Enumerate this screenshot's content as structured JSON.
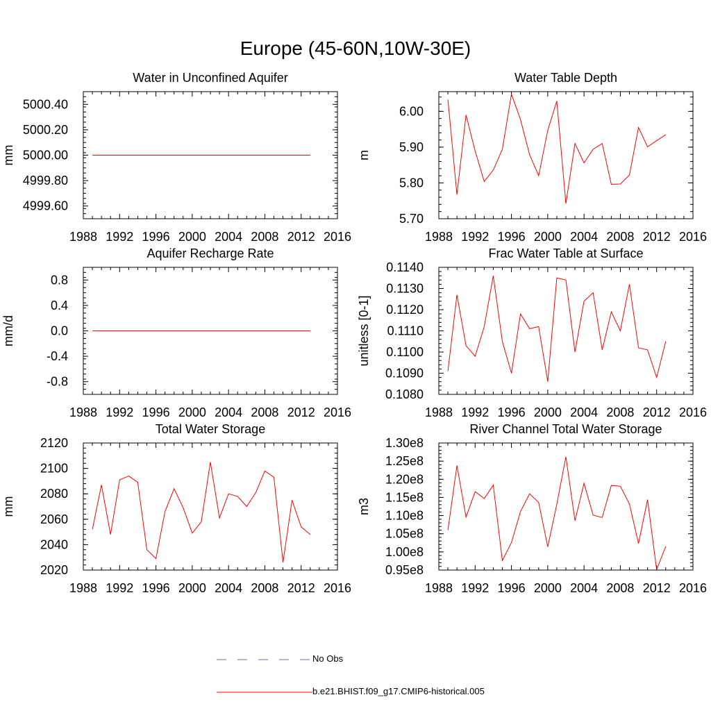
{
  "title": "Europe (45-60N,10W-30E)",
  "colors": {
    "model": "#ff0000",
    "obs": "#6b6bb3",
    "axis": "#000000"
  },
  "legend": [
    {
      "label": "No Obs",
      "style": "dashed",
      "color": "#6b6bb3"
    },
    {
      "label": "b.e21.BHIST.f09_g17.CMIP6-historical.005",
      "style": "solid",
      "color": "#ff0000"
    }
  ],
  "chart_data": [
    {
      "type": "line",
      "title": "Water in Unconfined Aquifer",
      "xlabel": "",
      "ylabel": "mm",
      "xlim": [
        1988,
        2016
      ],
      "ylim": [
        4999.5,
        5000.5
      ],
      "xticks": [
        1988,
        1992,
        1996,
        2000,
        2004,
        2008,
        2012,
        2016
      ],
      "yticks": [
        4999.6,
        4999.8,
        5000.0,
        5000.2,
        5000.4
      ],
      "ytick_labels": [
        "4999.60",
        "4999.80",
        "5000.00",
        "5000.20",
        "5000.40"
      ],
      "series": [
        {
          "name": "b.e21.BHIST.f09_g17.CMIP6-historical.005",
          "x": [
            1989,
            1990,
            1991,
            1992,
            1993,
            1994,
            1995,
            1996,
            1997,
            1998,
            1999,
            2000,
            2001,
            2002,
            2003,
            2004,
            2005,
            2006,
            2007,
            2008,
            2009,
            2010,
            2011,
            2012,
            2013
          ],
          "y": [
            5000,
            5000,
            5000,
            5000,
            5000,
            5000,
            5000,
            5000,
            5000,
            5000,
            5000,
            5000,
            5000,
            5000,
            5000,
            5000,
            5000,
            5000,
            5000,
            5000,
            5000,
            5000,
            5000,
            5000,
            5000
          ]
        }
      ]
    },
    {
      "type": "line",
      "title": "Water Table Depth",
      "xlabel": "",
      "ylabel": "m",
      "xlim": [
        1988,
        2016
      ],
      "ylim": [
        5.7,
        6.055
      ],
      "xticks": [
        1988,
        1992,
        1996,
        2000,
        2004,
        2008,
        2012,
        2016
      ],
      "yticks": [
        5.7,
        5.8,
        5.9,
        6.0
      ],
      "ytick_labels": [
        "5.70",
        "5.80",
        "5.90",
        "6.00"
      ],
      "series": [
        {
          "name": "b.e21.BHIST.f09_g17.CMIP6-historical.005",
          "x": [
            1989,
            1990,
            1991,
            1992,
            1993,
            1994,
            1995,
            1996,
            1997,
            1998,
            1999,
            2000,
            2001,
            2002,
            2003,
            2004,
            2005,
            2006,
            2007,
            2008,
            2009,
            2010,
            2011,
            2012,
            2013
          ],
          "y": [
            6.033,
            5.767,
            5.99,
            5.889,
            5.804,
            5.836,
            5.894,
            6.048,
            5.977,
            5.879,
            5.82,
            5.947,
            6.029,
            5.742,
            5.91,
            5.856,
            5.894,
            5.91,
            5.796,
            5.797,
            5.822,
            5.955,
            5.901,
            5.918,
            5.935
          ]
        }
      ]
    },
    {
      "type": "line",
      "title": "Aquifer Recharge Rate",
      "xlabel": "",
      "ylabel": "mm/d",
      "xlim": [
        1988,
        2016
      ],
      "ylim": [
        -1,
        1
      ],
      "xticks": [
        1988,
        1992,
        1996,
        2000,
        2004,
        2008,
        2012,
        2016
      ],
      "yticks": [
        -0.8,
        -0.4,
        0.0,
        0.4,
        0.8
      ],
      "ytick_labels": [
        "-0.8",
        "-0.4",
        "0.0",
        "0.4",
        "0.8"
      ],
      "series": [
        {
          "name": "b.e21.BHIST.f09_g17.CMIP6-historical.005",
          "x": [
            1989,
            1990,
            1991,
            1992,
            1993,
            1994,
            1995,
            1996,
            1997,
            1998,
            1999,
            2000,
            2001,
            2002,
            2003,
            2004,
            2005,
            2006,
            2007,
            2008,
            2009,
            2010,
            2011,
            2012,
            2013
          ],
          "y": [
            0,
            0,
            0,
            0,
            0,
            0,
            0,
            0,
            0,
            0,
            0,
            0,
            0,
            0,
            0,
            0,
            0,
            0,
            0,
            0,
            0,
            0,
            0,
            0,
            0
          ]
        }
      ]
    },
    {
      "type": "line",
      "title": "Frac Water Table at Surface",
      "xlabel": "",
      "ylabel": "unitless [0-1]",
      "xlim": [
        1988,
        2016
      ],
      "ylim": [
        0.108,
        0.114
      ],
      "xticks": [
        1988,
        1992,
        1996,
        2000,
        2004,
        2008,
        2012,
        2016
      ],
      "yticks": [
        0.108,
        0.109,
        0.11,
        0.111,
        0.112,
        0.113,
        0.114
      ],
      "ytick_labels": [
        "0.1080",
        "0.1090",
        "0.1100",
        "0.1110",
        "0.1120",
        "0.1130",
        "0.1140"
      ],
      "series": [
        {
          "name": "b.e21.BHIST.f09_g17.CMIP6-historical.005",
          "x": [
            1989,
            1990,
            1991,
            1992,
            1993,
            1994,
            1995,
            1996,
            1997,
            1998,
            1999,
            2000,
            2001,
            2002,
            2003,
            2004,
            2005,
            2006,
            2007,
            2008,
            2009,
            2010,
            2011,
            2012,
            2013
          ],
          "y": [
            0.1091,
            0.1127,
            0.1103,
            0.1098,
            0.1112,
            0.1136,
            0.1105,
            0.109,
            0.1118,
            0.1111,
            0.1112,
            0.1086,
            0.1135,
            0.1134,
            0.11,
            0.1124,
            0.1128,
            0.1101,
            0.1119,
            0.111,
            0.1132,
            0.1102,
            0.1101,
            0.1088,
            0.1105
          ]
        }
      ]
    },
    {
      "type": "line",
      "title": "Total Water Storage",
      "xlabel": "",
      "ylabel": "mm",
      "xlim": [
        1988,
        2016
      ],
      "ylim": [
        2020,
        2120
      ],
      "xticks": [
        1988,
        1992,
        1996,
        2000,
        2004,
        2008,
        2012,
        2016
      ],
      "yticks": [
        2020,
        2040,
        2060,
        2080,
        2100,
        2120
      ],
      "ytick_labels": [
        "2020",
        "2040",
        "2060",
        "2080",
        "2100",
        "2120"
      ],
      "series": [
        {
          "name": "b.e21.BHIST.f09_g17.CMIP6-historical.005",
          "x": [
            1989,
            1990,
            1991,
            1992,
            1993,
            1994,
            1995,
            1996,
            1997,
            1998,
            1999,
            2000,
            2001,
            2002,
            2003,
            2004,
            2005,
            2006,
            2007,
            2008,
            2009,
            2010,
            2011,
            2012,
            2013
          ],
          "y": [
            2052,
            2087,
            2048,
            2091,
            2094,
            2089,
            2036,
            2029,
            2066,
            2084,
            2069,
            2049,
            2058,
            2105,
            2061,
            2080,
            2078,
            2070,
            2081,
            2098,
            2093,
            2026,
            2075,
            2054,
            2048
          ]
        }
      ]
    },
    {
      "type": "line",
      "title": "River Channel Total Water Storage",
      "xlabel": "",
      "ylabel": "m3",
      "xlim": [
        1988,
        2016
      ],
      "ylim": [
        0.95,
        1.3
      ],
      "xticks": [
        1988,
        1992,
        1996,
        2000,
        2004,
        2008,
        2012,
        2016
      ],
      "yticks": [
        0.95,
        1.0,
        1.05,
        1.1,
        1.15,
        1.2,
        1.25,
        1.3
      ],
      "ytick_labels": [
        "0.95e8",
        "1.00e8",
        "1.05e8",
        "1.10e8",
        "1.15e8",
        "1.20e8",
        "1.25e8",
        "1.30e8"
      ],
      "series": [
        {
          "name": "b.e21.BHIST.f09_g17.CMIP6-historical.005",
          "x": [
            1989,
            1990,
            1991,
            1992,
            1993,
            1994,
            1995,
            1996,
            1997,
            1998,
            1999,
            2000,
            2001,
            2002,
            2003,
            2004,
            2005,
            2006,
            2007,
            2008,
            2009,
            2010,
            2011,
            2012,
            2013
          ],
          "y": [
            1.06,
            1.238,
            1.096,
            1.166,
            1.147,
            1.184,
            0.976,
            1.026,
            1.111,
            1.16,
            1.136,
            1.014,
            1.131,
            1.262,
            1.086,
            1.189,
            1.101,
            1.095,
            1.183,
            1.181,
            1.132,
            1.023,
            1.144,
            0.951,
            1.015
          ]
        }
      ]
    }
  ]
}
